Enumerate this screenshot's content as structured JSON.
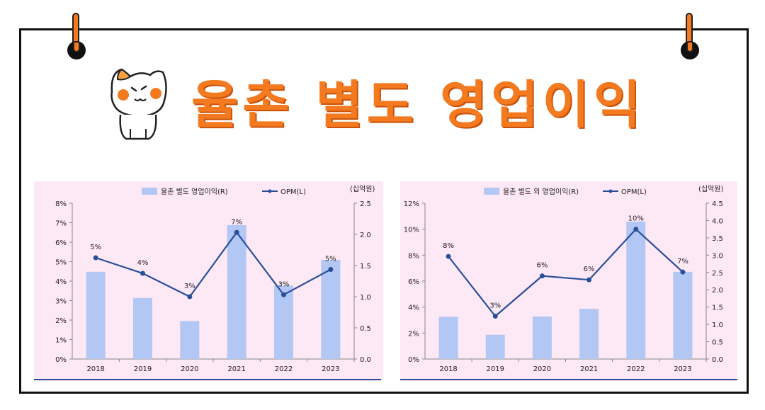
{
  "page": {
    "title": "율촌 별도 영업이익"
  },
  "chart_data": [
    {
      "type": "bar",
      "categories": [
        "2018",
        "2019",
        "2020",
        "2021",
        "2022",
        "2023"
      ],
      "series": [
        {
          "name": "율촌 별도 영업이익(R)",
          "type": "bar",
          "axis": "right",
          "values": [
            1.4,
            0.98,
            0.61,
            2.15,
            1.18,
            1.59
          ],
          "color": "#b3c7f5"
        },
        {
          "name": "OPM(L)",
          "type": "line",
          "axis": "left",
          "values": [
            5.2,
            4.4,
            3.2,
            6.5,
            3.3,
            4.6
          ],
          "color": "#2a4f9a"
        }
      ],
      "data_labels": [
        "5%",
        "4%",
        "3%",
        "7%",
        "3%",
        "5%"
      ],
      "left_axis": {
        "ticks": [
          "0%",
          "1%",
          "2%",
          "3%",
          "4%",
          "5%",
          "6%",
          "7%",
          "8%"
        ],
        "min": 0,
        "max": 8
      },
      "right_axis": {
        "ticks": [
          "0.0",
          "0.5",
          "1.0",
          "1.5",
          "2.0",
          "2.5"
        ],
        "min": 0,
        "max": 2.5
      },
      "unit": "(십억원)",
      "grid": false,
      "legend": "top-center"
    },
    {
      "type": "bar",
      "categories": [
        "2018",
        "2019",
        "2020",
        "2021",
        "2022",
        "2023"
      ],
      "series": [
        {
          "name": "율촌 별도 외 영업이익(R)",
          "type": "bar",
          "axis": "right",
          "values": [
            1.22,
            0.7,
            1.23,
            1.45,
            3.97,
            2.52
          ],
          "color": "#b3c7f5"
        },
        {
          "name": "OPM(L)",
          "type": "line",
          "axis": "left",
          "values": [
            7.9,
            3.3,
            6.4,
            6.1,
            10.0,
            6.7
          ],
          "color": "#2a4f9a"
        }
      ],
      "data_labels": [
        "8%",
        "3%",
        "6%",
        "6%",
        "10%",
        "7%"
      ],
      "left_axis": {
        "ticks": [
          "0%",
          "2%",
          "4%",
          "6%",
          "8%",
          "10%",
          "12%"
        ],
        "min": 0,
        "max": 12
      },
      "right_axis": {
        "ticks": [
          "0.0",
          "0.5",
          "1.0",
          "1.5",
          "2.0",
          "2.5",
          "3.0",
          "3.5",
          "4.0",
          "4.5"
        ],
        "min": 0,
        "max": 4.5
      },
      "unit": "(십억원)",
      "grid": false,
      "legend": "top-center"
    }
  ]
}
